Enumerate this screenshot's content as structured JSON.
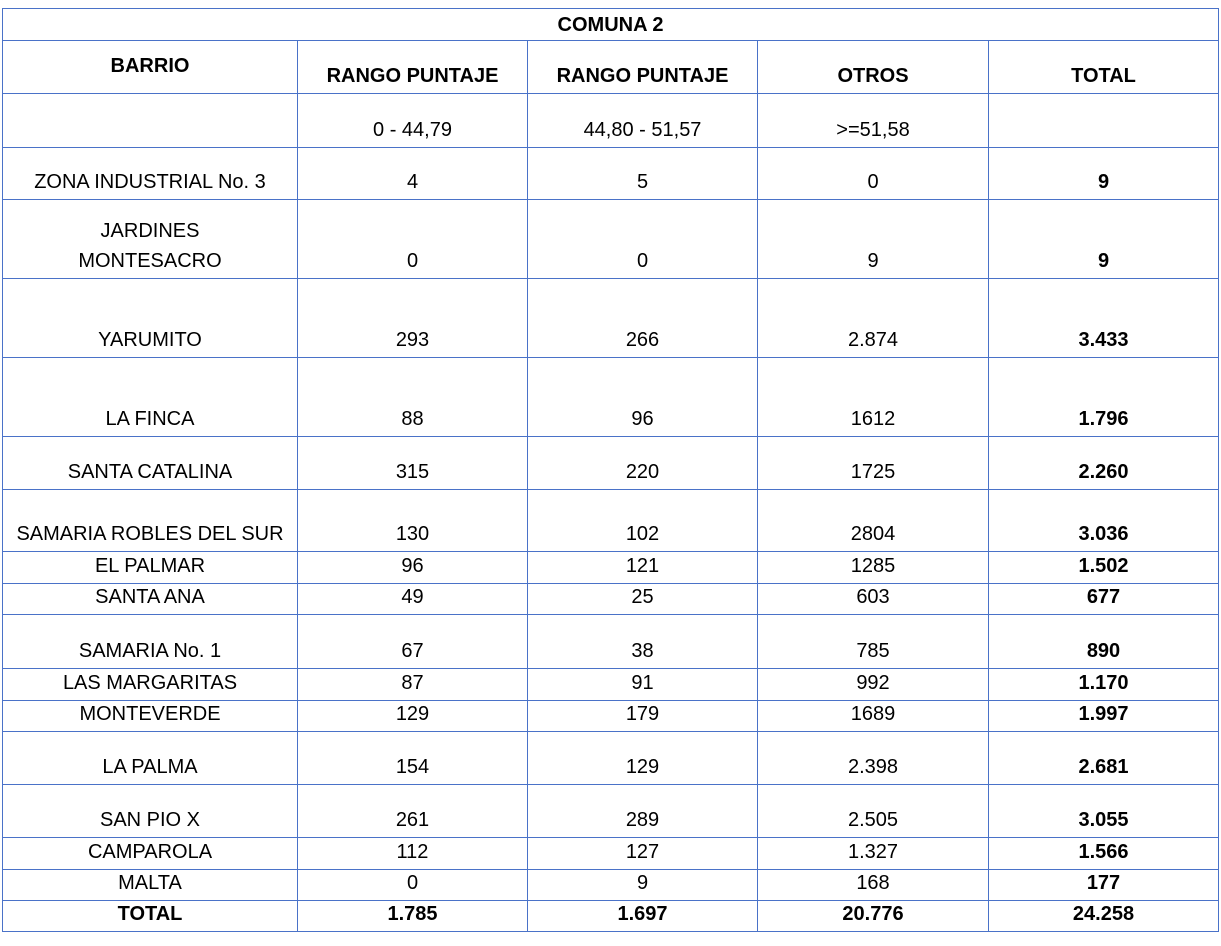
{
  "table": {
    "title": "COMUNA 2",
    "header": [
      "BARRIO",
      "RANGO PUNTAJE",
      "RANGO PUNTAJE",
      "OTROS",
      "TOTAL"
    ],
    "ranges": [
      "0 - 44,79",
      "44,80 - 51,57",
      ">=51,58"
    ],
    "rows": [
      [
        "ZONA INDUSTRIAL No. 3",
        "4",
        "5",
        "0",
        "9"
      ],
      [
        "JARDINES MONTESACRO",
        "0",
        "0",
        "9",
        "9"
      ],
      [
        "YARUMITO",
        "293",
        "266",
        "2.874",
        "3.433"
      ],
      [
        "LA FINCA",
        "88",
        "96",
        "1612",
        "1.796"
      ],
      [
        "SANTA CATALINA",
        "315",
        "220",
        "1725",
        "2.260"
      ],
      [
        "SAMARIA ROBLES DEL SUR",
        "130",
        "102",
        "2804",
        "3.036"
      ],
      [
        "EL PALMAR",
        "96",
        "121",
        "1285",
        "1.502"
      ],
      [
        "SANTA ANA",
        "49",
        "25",
        "603",
        "677"
      ],
      [
        "SAMARIA No. 1",
        "67",
        "38",
        "785",
        "890"
      ],
      [
        "LAS MARGARITAS",
        "87",
        "91",
        "992",
        "1.170"
      ],
      [
        "MONTEVERDE",
        "129",
        "179",
        "1689",
        "1.997"
      ],
      [
        "LA PALMA",
        "154",
        "129",
        "2.398",
        "2.681"
      ],
      [
        "SAN PIO X",
        "261",
        "289",
        "2.505",
        "3.055"
      ],
      [
        "CAMPAROLA",
        "112",
        "127",
        "1.327",
        "1.566"
      ],
      [
        "MALTA",
        "0",
        "9",
        "168",
        "177"
      ]
    ],
    "total": [
      "TOTAL",
      "1.785",
      "1.697",
      "20.776",
      "24.258"
    ]
  }
}
